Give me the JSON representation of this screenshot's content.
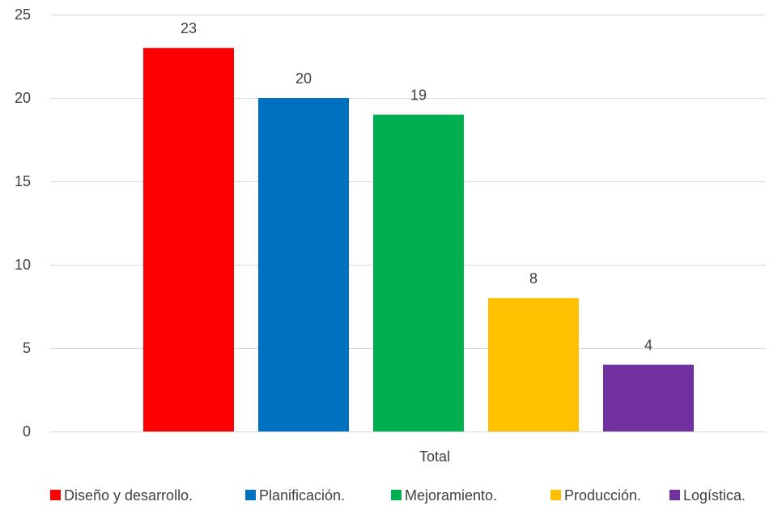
{
  "chart_data": {
    "type": "bar",
    "categories": [
      "Total"
    ],
    "series": [
      {
        "name": "Diseño y desarrollo.",
        "values": [
          23
        ],
        "color": "#ff0000"
      },
      {
        "name": "Planificación.",
        "values": [
          20
        ],
        "color": "#0070c0"
      },
      {
        "name": "Mejoramiento.",
        "values": [
          19
        ],
        "color": "#00b050"
      },
      {
        "name": "Producción.",
        "values": [
          8
        ],
        "color": "#ffc000"
      },
      {
        "name": "Logística.",
        "values": [
          4
        ],
        "color": "#7030a0"
      }
    ],
    "ylim": [
      0,
      25
    ],
    "yticks": [
      0,
      5,
      10,
      15,
      20,
      25
    ],
    "grid": true,
    "legend_position": "bottom",
    "data_labels": true
  }
}
